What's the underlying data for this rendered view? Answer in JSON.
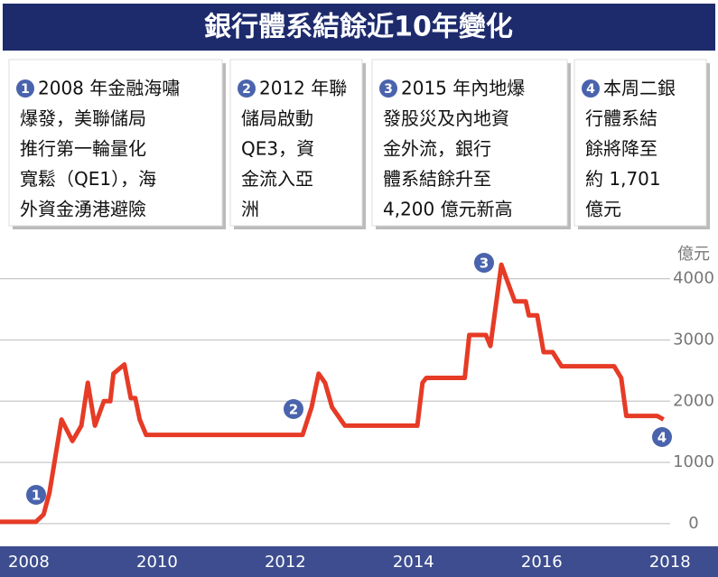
{
  "chart_data": {
    "type": "line",
    "title": "銀行體系結餘近10年變化",
    "y_unit": "億元",
    "annotations": [
      {
        "number": "1",
        "lines": [
          "2008 年金融海嘯",
          "爆發，美聯儲局",
          "推行第一輪量化",
          "寬鬆（QE1），海",
          "外資金湧港避險"
        ]
      },
      {
        "number": "2",
        "lines": [
          "2012 年聯",
          "儲局啟動",
          "QE3，資",
          "金流入亞",
          "洲"
        ]
      },
      {
        "number": "3",
        "lines": [
          "2015 年內地爆",
          "發股災及內地資",
          "金外流，銀行",
          "體系結餘升至",
          "4,200 億元新高"
        ]
      },
      {
        "number": "4",
        "lines": [
          "本周二銀",
          "行體系結",
          "餘將降至",
          "約 1,701",
          "億元"
        ]
      }
    ],
    "x": [
      2007.55,
      2008.11,
      2008.23,
      2008.32,
      2008.51,
      2008.68,
      2008.82,
      2008.92,
      2009.03,
      2009.17,
      2009.27,
      2009.32,
      2009.49,
      2009.59,
      2009.66,
      2009.73,
      2009.83,
      2012.27,
      2012.41,
      2012.52,
      2012.62,
      2012.73,
      2012.93,
      2014.06,
      2014.14,
      2014.2,
      2014.8,
      2014.87,
      2015.13,
      2015.2,
      2015.27,
      2015.37,
      2015.46,
      2015.58,
      2015.75,
      2015.8,
      2015.93,
      2016.03,
      2016.17,
      2016.31,
      2017.13,
      2017.24,
      2017.32,
      2017.8,
      2017.9
    ],
    "series": [
      {
        "color": "#e63b26",
        "values": [
          30,
          30,
          150,
          500,
          1700,
          1350,
          1600,
          2300,
          1600,
          2000,
          2000,
          2450,
          2600,
          2050,
          2050,
          1700,
          1450,
          1450,
          1900,
          2450,
          2300,
          1900,
          1600,
          1600,
          2300,
          2380,
          2380,
          3080,
          3080,
          2900,
          3450,
          4230,
          3970,
          3630,
          3630,
          3400,
          3400,
          2800,
          2800,
          2570,
          2570,
          2380,
          1760,
          1760,
          1701
        ]
      }
    ],
    "xlim": [
      2007.55,
      2018.75
    ],
    "xticks": [
      2008,
      2010,
      2012,
      2014,
      2016,
      2018
    ],
    "ylim": [
      -370,
      4570
    ],
    "yticks": [
      0,
      1000,
      2000,
      3000,
      4000
    ],
    "grid": true
  }
}
